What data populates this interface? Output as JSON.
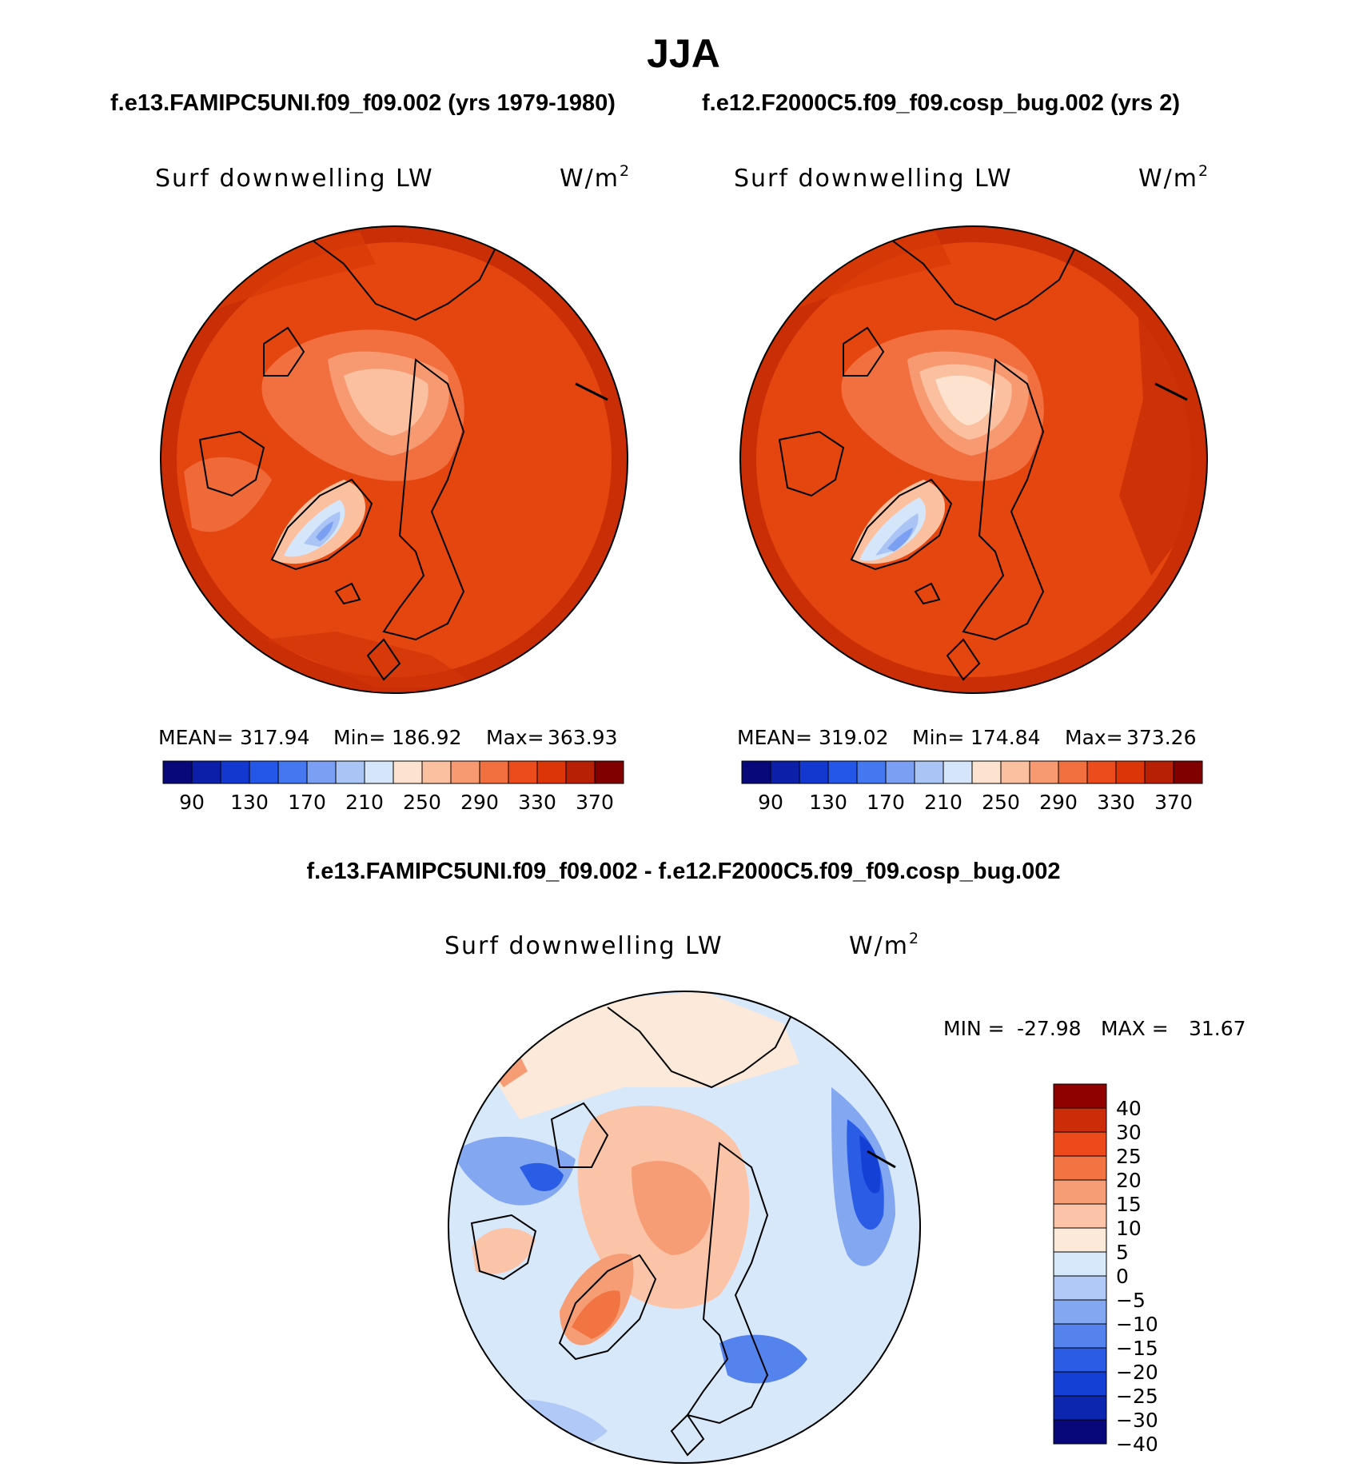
{
  "title": "JJA",
  "run_header": {
    "left": "f.e13.FAMIPC5UNI.f09_f09.002 (yrs 1979-1980)",
    "right": "f.e12.F2000C5.f09_f09.cosp_bug.002 (yrs 2)"
  },
  "diff_header": "f.e13.FAMIPC5UNI.f09_f09.002 - f.e12.F2000C5.f09_f09.cosp_bug.002",
  "colors": {
    "abs_scale": [
      "#08087a",
      "#0b1fa8",
      "#1238d0",
      "#2457e8",
      "#4477f0",
      "#7b9ff2",
      "#aac4f5",
      "#d5e6fa",
      "#fde3cf",
      "#fbc0a0",
      "#f79a72",
      "#f2703f",
      "#ec4b1c",
      "#dc3608",
      "#b72004",
      "#800000"
    ],
    "diff_scale": [
      "#08087a",
      "#0d26b0",
      "#1540d6",
      "#2a5ce6",
      "#5583ee",
      "#84a7f2",
      "#b0c9f6",
      "#d8e8fb",
      "#fde9d9",
      "#fbc4a8",
      "#f79d75",
      "#f27442",
      "#ec4a1a",
      "#cc2c08",
      "#8f0000"
    ]
  },
  "chart_data": [
    {
      "type": "heatmap",
      "projection": "north-polar-stereographic",
      "title_left": "Surf downwelling LW",
      "units_base": "W/m",
      "units_exp": "2",
      "stats": {
        "mean_label": "MEAN=",
        "mean": "317.94",
        "min_label": "Min=",
        "min": "186.92",
        "max_label": "Max=",
        "max": "363.93"
      },
      "colorbar": {
        "tick_labels": [
          "90",
          "130",
          "170",
          "210",
          "250",
          "290",
          "330",
          "370"
        ],
        "levels": [
          90,
          110,
          130,
          150,
          170,
          190,
          210,
          230,
          250,
          270,
          290,
          310,
          330,
          350,
          370
        ]
      },
      "dominant_range": [
        300,
        350
      ],
      "greenland_min_range": [
        190,
        230
      ]
    },
    {
      "type": "heatmap",
      "projection": "north-polar-stereographic",
      "title_left": "Surf downwelling LW",
      "units_base": "W/m",
      "units_exp": "2",
      "stats": {
        "mean_label": "MEAN=",
        "mean": "319.02",
        "min_label": "Min=",
        "min": "174.84",
        "max_label": "Max=",
        "max": "373.26"
      },
      "colorbar": {
        "tick_labels": [
          "90",
          "130",
          "170",
          "210",
          "250",
          "290",
          "330",
          "370"
        ],
        "levels": [
          90,
          110,
          130,
          150,
          170,
          190,
          210,
          230,
          250,
          270,
          290,
          310,
          330,
          350,
          370
        ]
      },
      "dominant_range": [
        300,
        360
      ],
      "greenland_min_range": [
        180,
        230
      ]
    },
    {
      "type": "heatmap",
      "projection": "north-polar-stereographic",
      "title_left": "Surf downwelling LW",
      "units_base": "W/m",
      "units_exp": "2",
      "stats": {
        "min_label": "MIN =",
        "min": "-27.98",
        "max_label": "MAX =",
        "max": "31.67"
      },
      "colorbar": {
        "orientation": "vertical",
        "tick_labels": [
          "40",
          "30",
          "25",
          "20",
          "15",
          "10",
          "5",
          "0",
          "−5",
          "−10",
          "−15",
          "−20",
          "−25",
          "−30",
          "−40"
        ],
        "levels": [
          -40,
          -30,
          -25,
          -20,
          -15,
          -10,
          -5,
          0,
          5,
          10,
          15,
          20,
          25,
          30,
          40
        ]
      }
    }
  ]
}
